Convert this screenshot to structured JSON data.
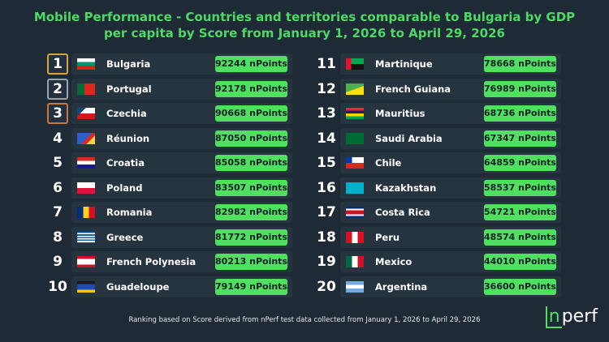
{
  "title": [
    "Mobile Performance - Countries and territories comparable to Bulgaria by GDP",
    "per capita by Score from January 1, 2026 to April 29, 2026"
  ],
  "rows": [
    {
      "rank": "1",
      "country": "Bulgaria",
      "score": "92244 nPoints"
    },
    {
      "rank": "2",
      "country": "Portugal",
      "score": "92178 nPoints"
    },
    {
      "rank": "3",
      "country": "Czechia",
      "score": "90668 nPoints"
    },
    {
      "rank": "4",
      "country": "Réunion",
      "score": "87050 nPoints"
    },
    {
      "rank": "5",
      "country": "Croatia",
      "score": "85058 nPoints"
    },
    {
      "rank": "6",
      "country": "Poland",
      "score": "83507 nPoints"
    },
    {
      "rank": "7",
      "country": "Romania",
      "score": "82982 nPoints"
    },
    {
      "rank": "8",
      "country": "Greece",
      "score": "81772 nPoints"
    },
    {
      "rank": "9",
      "country": "French Polynesia",
      "score": "80213 nPoints"
    },
    {
      "rank": "10",
      "country": "Guadeloupe",
      "score": "79149 nPoints"
    },
    {
      "rank": "11",
      "country": "Martinique",
      "score": "78668 nPoints"
    },
    {
      "rank": "12",
      "country": "French Guiana",
      "score": "76989 nPoints"
    },
    {
      "rank": "13",
      "country": "Mauritius",
      "score": "68736 nPoints"
    },
    {
      "rank": "14",
      "country": "Saudi Arabia",
      "score": "67347 nPoints"
    },
    {
      "rank": "15",
      "country": "Chile",
      "score": "64859 nPoints"
    },
    {
      "rank": "16",
      "country": "Kazakhstan",
      "score": "58537 nPoints"
    },
    {
      "rank": "17",
      "country": "Costa Rica",
      "score": "54721 nPoints"
    },
    {
      "rank": "18",
      "country": "Peru",
      "score": "48574 nPoints"
    },
    {
      "rank": "19",
      "country": "Mexico",
      "score": "44010 nPoints"
    },
    {
      "rank": "20",
      "country": "Argentina",
      "score": "36600 nPoints"
    }
  ],
  "footer": "Ranking based on Score derived from nPerf test data collected from January 1, 2026 to April 29, 2026",
  "logo": [
    "n",
    "perf"
  ]
}
